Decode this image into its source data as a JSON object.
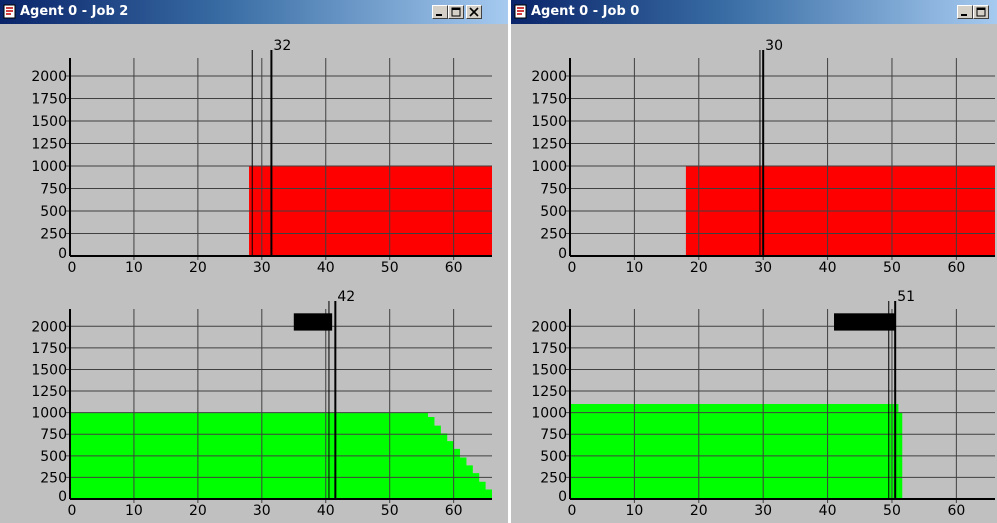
{
  "windows": [
    {
      "id": "left",
      "title": "Agent 0 - Job 2",
      "panels": [
        {
          "marker_label": "32",
          "chart_data": {
            "type": "area",
            "xlim": [
              0,
              66
            ],
            "ylim": [
              0,
              2200
            ],
            "xticks": [
              "0",
              "10",
              "20",
              "30",
              "40",
              "50",
              "60"
            ],
            "yticks": [
              "0",
              "250",
              "500",
              "750",
              "1000",
              "1250",
              "1500",
              "1750",
              "2000"
            ],
            "grid": true,
            "fill_color": "#ff0000",
            "series": [
              {
                "x": [
                  28,
                  66
                ],
                "y": [
                  1000,
                  1000
                ]
              }
            ],
            "marker_lines": [
              28.5,
              31.5
            ],
            "marker_value": 32
          }
        },
        {
          "marker_label": "42",
          "chart_data": {
            "type": "area",
            "xlim": [
              0,
              66
            ],
            "ylim": [
              0,
              2200
            ],
            "xticks": [
              "0",
              "10",
              "20",
              "30",
              "40",
              "50",
              "60"
            ],
            "yticks": [
              "0",
              "250",
              "500",
              "750",
              "1000",
              "1250",
              "1500",
              "1750",
              "2000"
            ],
            "grid": true,
            "fill_color": "#00ff00",
            "series": [
              {
                "x": [
                  0,
                  56,
                  57,
                  58,
                  59,
                  60,
                  61,
                  62,
                  63,
                  64,
                  65,
                  66
                ],
                "y": [
                  1000,
                  950,
                  850,
                  760,
                  670,
                  580,
                  480,
                  390,
                  300,
                  200,
                  110,
                  0
                ]
              }
            ],
            "bar": {
              "x0": 35,
              "x1": 41,
              "y0": 1950,
              "y1": 2150,
              "color": "#000000"
            },
            "marker_lines": [
              40.5,
              41.5
            ],
            "marker_value": 42
          }
        }
      ]
    },
    {
      "id": "right",
      "title": "Agent 0 - Job 0",
      "panels": [
        {
          "marker_label": "30",
          "chart_data": {
            "type": "area",
            "xlim": [
              0,
              66
            ],
            "ylim": [
              0,
              2200
            ],
            "xticks": [
              "0",
              "10",
              "20",
              "30",
              "40",
              "50",
              "60"
            ],
            "yticks": [
              "0",
              "250",
              "500",
              "750",
              "1000",
              "1250",
              "1500",
              "1750",
              "2000"
            ],
            "grid": true,
            "fill_color": "#ff0000",
            "series": [
              {
                "x": [
                  18,
                  66
                ],
                "y": [
                  1000,
                  1000
                ]
              }
            ],
            "marker_lines": [
              29.5,
              30
            ],
            "marker_value": 30
          }
        },
        {
          "marker_label": "51",
          "chart_data": {
            "type": "area",
            "xlim": [
              0,
              66
            ],
            "ylim": [
              0,
              2200
            ],
            "xticks": [
              "0",
              "10",
              "20",
              "30",
              "40",
              "50",
              "60"
            ],
            "yticks": [
              "0",
              "250",
              "500",
              "750",
              "1000",
              "1250",
              "1500",
              "1750",
              "2000"
            ],
            "grid": true,
            "fill_color": "#00ff00",
            "series": [
              {
                "x": [
                  0,
                  51
                ],
                "y": [
                  1100,
                  1100
                ]
              },
              {
                "x": [
                  51,
                  51.6
                ],
                "y": [
                  1000,
                  1000
                ]
              }
            ],
            "bar": {
              "x0": 41,
              "x1": 50.5,
              "y0": 1950,
              "y1": 2150,
              "color": "#000000"
            },
            "marker_lines": [
              49.5,
              50.5
            ],
            "marker_value": 51
          }
        }
      ]
    }
  ],
  "title_buttons": [
    "minimize-icon",
    "maximize-icon",
    "close-icon"
  ],
  "colors": {
    "titlebar_start": "#0a246a",
    "titlebar_end": "#a6caf0",
    "panel_bg": "#c0c0c0",
    "grid": "#404040",
    "red_fill": "#ff0000",
    "green_fill": "#00ff00"
  }
}
